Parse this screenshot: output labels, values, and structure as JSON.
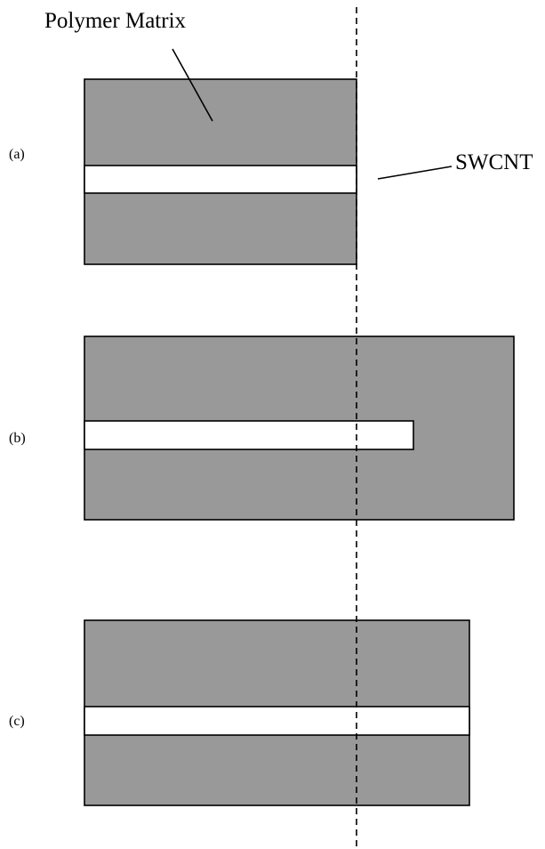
{
  "labels": {
    "matrix": "Polymer Matrix",
    "swcnt": "SWCNT",
    "panel_a": "(a)",
    "panel_b": "(b)",
    "panel_c": "(c)"
  },
  "colors": {
    "matrix": "#999999",
    "nanotube": "#ffffff",
    "outline": "#000000",
    "background": "#ffffff"
  }
}
